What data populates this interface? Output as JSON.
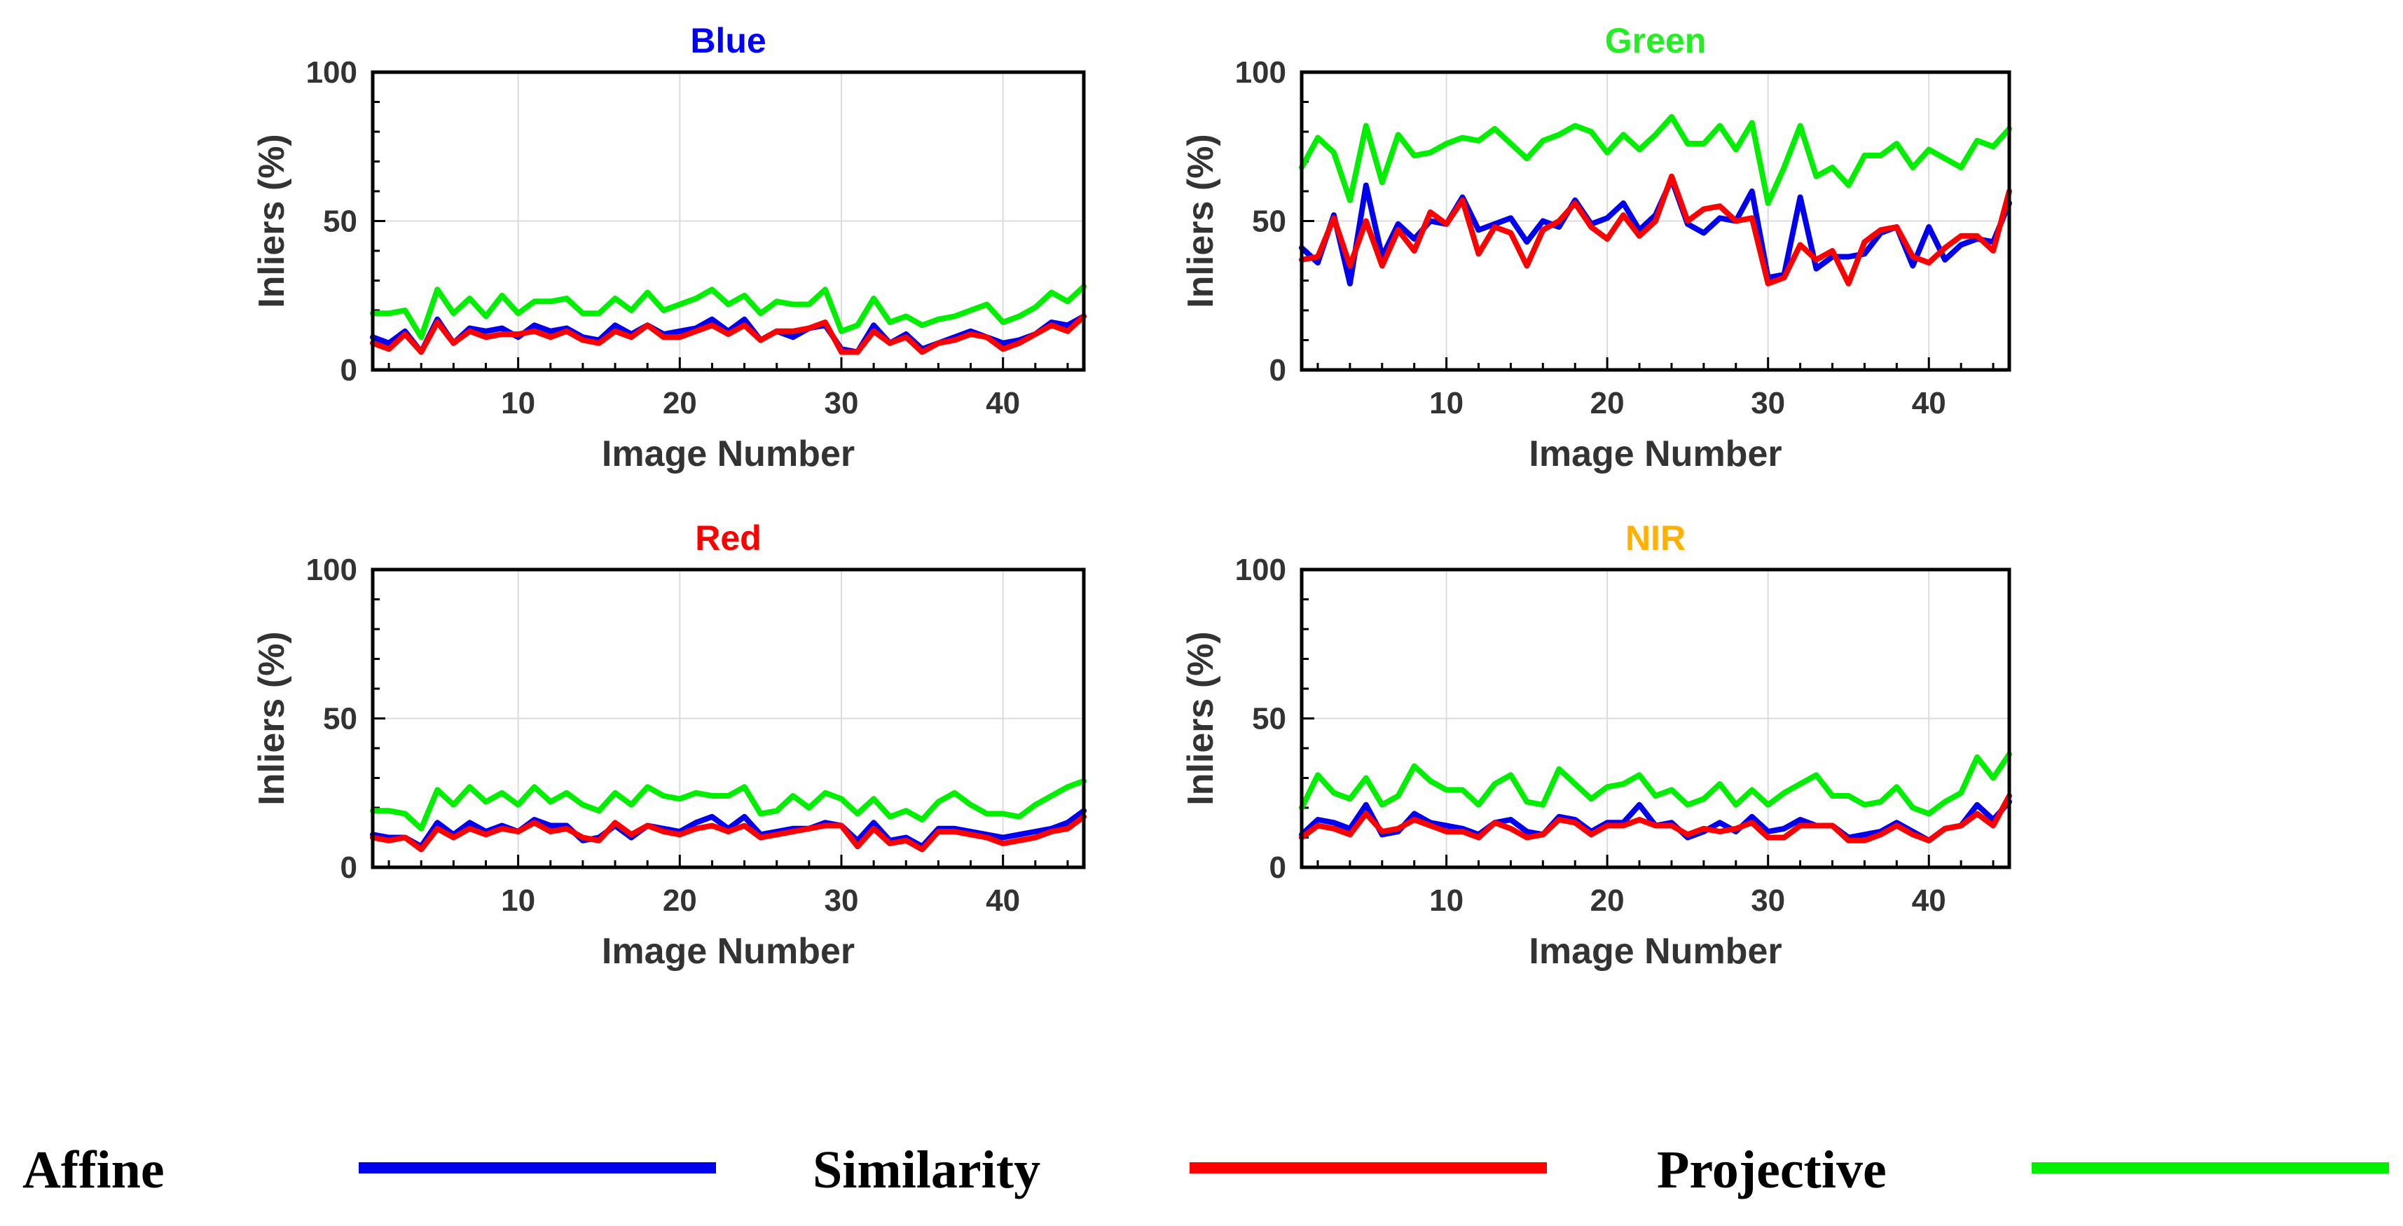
{
  "legend": {
    "items": [
      {
        "label": "Affine",
        "color": "#0000ee"
      },
      {
        "label": "Similarity",
        "color": "#ff0000"
      },
      {
        "label": "Projective",
        "color": "#00ee00"
      }
    ]
  },
  "chart_data": [
    {
      "type": "line",
      "title": "Blue",
      "title_color": "#0000ff",
      "xlabel": "Image Number",
      "ylabel": "Inliers (%)",
      "xlim": [
        1,
        45
      ],
      "ylim": [
        0,
        100
      ],
      "xticks": [
        10,
        20,
        30,
        40
      ],
      "yticks": [
        0,
        50,
        100
      ],
      "x": [
        1,
        2,
        3,
        4,
        5,
        6,
        7,
        8,
        9,
        10,
        11,
        12,
        13,
        14,
        15,
        16,
        17,
        18,
        19,
        20,
        21,
        22,
        23,
        24,
        25,
        26,
        27,
        28,
        29,
        30,
        31,
        32,
        33,
        34,
        35,
        36,
        37,
        38,
        39,
        40,
        41,
        42,
        43,
        44,
        45
      ],
      "series": [
        {
          "name": "Affine",
          "color": "#0000ee",
          "values": [
            11,
            9,
            13,
            6,
            17,
            9,
            14,
            13,
            14,
            11,
            15,
            13,
            14,
            11,
            10,
            15,
            12,
            15,
            12,
            13,
            14,
            17,
            13,
            17,
            10,
            13,
            11,
            14,
            15,
            7,
            6,
            15,
            9,
            12,
            7,
            9,
            11,
            13,
            11,
            9,
            10,
            12,
            16,
            15,
            18
          ]
        },
        {
          "name": "Similarity",
          "color": "#ff0000",
          "values": [
            9,
            7,
            12,
            6,
            16,
            9,
            13,
            11,
            12,
            12,
            13,
            11,
            13,
            10,
            9,
            13,
            11,
            15,
            11,
            11,
            13,
            15,
            12,
            15,
            10,
            13,
            13,
            14,
            16,
            6,
            6,
            13,
            9,
            11,
            6,
            9,
            10,
            12,
            11,
            7,
            9,
            12,
            15,
            13,
            18
          ]
        },
        {
          "name": "Projective",
          "color": "#00ee00",
          "values": [
            19,
            19,
            20,
            11,
            27,
            19,
            24,
            18,
            25,
            19,
            23,
            23,
            24,
            19,
            19,
            24,
            20,
            26,
            20,
            22,
            24,
            27,
            22,
            25,
            19,
            23,
            22,
            22,
            27,
            13,
            15,
            24,
            16,
            18,
            15,
            17,
            18,
            20,
            22,
            16,
            18,
            21,
            26,
            23,
            28
          ]
        }
      ]
    },
    {
      "type": "line",
      "title": "Green",
      "title_color": "#22ee22",
      "xlabel": "Image Number",
      "ylabel": "Inliers (%)",
      "xlim": [
        1,
        45
      ],
      "ylim": [
        0,
        100
      ],
      "xticks": [
        10,
        20,
        30,
        40
      ],
      "yticks": [
        0,
        50,
        100
      ],
      "x": [
        1,
        2,
        3,
        4,
        5,
        6,
        7,
        8,
        9,
        10,
        11,
        12,
        13,
        14,
        15,
        16,
        17,
        18,
        19,
        20,
        21,
        22,
        23,
        24,
        25,
        26,
        27,
        28,
        29,
        30,
        31,
        32,
        33,
        34,
        35,
        36,
        37,
        38,
        39,
        40,
        41,
        42,
        43,
        44,
        45
      ],
      "series": [
        {
          "name": "Affine",
          "color": "#0000ee",
          "values": [
            41,
            36,
            52,
            29,
            62,
            38,
            49,
            44,
            50,
            49,
            58,
            47,
            49,
            51,
            43,
            50,
            48,
            57,
            49,
            51,
            56,
            47,
            52,
            64,
            49,
            46,
            51,
            50,
            60,
            31,
            32,
            58,
            34,
            38,
            38,
            39,
            46,
            48,
            35,
            48,
            37,
            42,
            44,
            43,
            56
          ]
        },
        {
          "name": "Similarity",
          "color": "#ff0000",
          "values": [
            37,
            38,
            51,
            35,
            50,
            35,
            47,
            40,
            53,
            49,
            57,
            39,
            48,
            46,
            35,
            47,
            50,
            56,
            48,
            44,
            52,
            45,
            50,
            65,
            50,
            54,
            55,
            50,
            51,
            29,
            31,
            42,
            37,
            40,
            29,
            43,
            47,
            48,
            38,
            36,
            41,
            45,
            45,
            40,
            60
          ]
        },
        {
          "name": "Projective",
          "color": "#00ee00",
          "values": [
            68,
            78,
            73,
            57,
            82,
            63,
            79,
            72,
            73,
            76,
            78,
            77,
            81,
            76,
            71,
            77,
            79,
            82,
            80,
            73,
            79,
            74,
            79,
            85,
            76,
            76,
            82,
            74,
            83,
            56,
            68,
            82,
            65,
            68,
            62,
            72,
            72,
            76,
            68,
            74,
            71,
            68,
            77,
            75,
            81
          ]
        }
      ]
    },
    {
      "type": "line",
      "title": "Red",
      "title_color": "#ff0000",
      "xlabel": "Image Number",
      "ylabel": "Inliers (%)",
      "xlim": [
        1,
        45
      ],
      "ylim": [
        0,
        100
      ],
      "xticks": [
        10,
        20,
        30,
        40
      ],
      "yticks": [
        0,
        50,
        100
      ],
      "x": [
        1,
        2,
        3,
        4,
        5,
        6,
        7,
        8,
        9,
        10,
        11,
        12,
        13,
        14,
        15,
        16,
        17,
        18,
        19,
        20,
        21,
        22,
        23,
        24,
        25,
        26,
        27,
        28,
        29,
        30,
        31,
        32,
        33,
        34,
        35,
        36,
        37,
        38,
        39,
        40,
        41,
        42,
        43,
        44,
        45
      ],
      "series": [
        {
          "name": "Affine",
          "color": "#0000ee",
          "values": [
            11,
            10,
            10,
            7,
            15,
            11,
            15,
            12,
            14,
            12,
            16,
            14,
            14,
            9,
            10,
            14,
            10,
            14,
            13,
            12,
            15,
            17,
            13,
            17,
            11,
            12,
            13,
            13,
            15,
            14,
            9,
            15,
            9,
            10,
            7,
            13,
            13,
            12,
            11,
            10,
            11,
            12,
            13,
            15,
            19
          ]
        },
        {
          "name": "Similarity",
          "color": "#ff0000",
          "values": [
            10,
            9,
            10,
            6,
            13,
            10,
            13,
            11,
            13,
            12,
            15,
            12,
            13,
            10,
            9,
            15,
            11,
            14,
            12,
            11,
            13,
            14,
            12,
            14,
            10,
            11,
            12,
            13,
            14,
            14,
            7,
            13,
            8,
            9,
            6,
            12,
            12,
            11,
            10,
            8,
            9,
            10,
            12,
            13,
            17
          ]
        },
        {
          "name": "Projective",
          "color": "#00ee00",
          "values": [
            19,
            19,
            18,
            13,
            26,
            21,
            27,
            22,
            25,
            21,
            27,
            22,
            25,
            21,
            19,
            25,
            21,
            27,
            24,
            23,
            25,
            24,
            24,
            27,
            18,
            19,
            24,
            20,
            25,
            23,
            18,
            23,
            17,
            19,
            16,
            22,
            25,
            21,
            18,
            18,
            17,
            21,
            24,
            27,
            29
          ]
        }
      ]
    },
    {
      "type": "line",
      "title": "NIR",
      "title_color": "#ffb000",
      "xlabel": "Image Number",
      "ylabel": "Inliers (%)",
      "xlim": [
        1,
        45
      ],
      "ylim": [
        0,
        100
      ],
      "xticks": [
        10,
        20,
        30,
        40
      ],
      "yticks": [
        0,
        50,
        100
      ],
      "x": [
        1,
        2,
        3,
        4,
        5,
        6,
        7,
        8,
        9,
        10,
        11,
        12,
        13,
        14,
        15,
        16,
        17,
        18,
        19,
        20,
        21,
        22,
        23,
        24,
        25,
        26,
        27,
        28,
        29,
        30,
        31,
        32,
        33,
        34,
        35,
        36,
        37,
        38,
        39,
        40,
        41,
        42,
        43,
        44,
        45
      ],
      "series": [
        {
          "name": "Affine",
          "color": "#0000ee",
          "values": [
            11,
            16,
            15,
            13,
            21,
            11,
            12,
            18,
            15,
            14,
            13,
            11,
            15,
            16,
            12,
            11,
            17,
            16,
            12,
            15,
            15,
            21,
            14,
            15,
            10,
            12,
            15,
            12,
            17,
            12,
            13,
            16,
            14,
            14,
            10,
            11,
            12,
            15,
            12,
            9,
            13,
            14,
            21,
            16,
            22
          ]
        },
        {
          "name": "Similarity",
          "color": "#ff0000",
          "values": [
            10,
            14,
            13,
            11,
            18,
            12,
            13,
            16,
            14,
            12,
            12,
            10,
            15,
            13,
            10,
            11,
            16,
            15,
            11,
            14,
            14,
            16,
            14,
            14,
            11,
            13,
            12,
            13,
            15,
            10,
            10,
            14,
            14,
            14,
            9,
            9,
            11,
            14,
            11,
            9,
            13,
            14,
            18,
            14,
            24
          ]
        },
        {
          "name": "Projective",
          "color": "#00ee00",
          "values": [
            20,
            31,
            25,
            23,
            30,
            21,
            24,
            34,
            29,
            26,
            26,
            21,
            28,
            31,
            22,
            21,
            33,
            28,
            23,
            27,
            28,
            31,
            24,
            26,
            21,
            23,
            28,
            21,
            26,
            21,
            25,
            28,
            31,
            24,
            24,
            21,
            22,
            27,
            20,
            18,
            22,
            25,
            37,
            30,
            38
          ]
        }
      ]
    }
  ]
}
